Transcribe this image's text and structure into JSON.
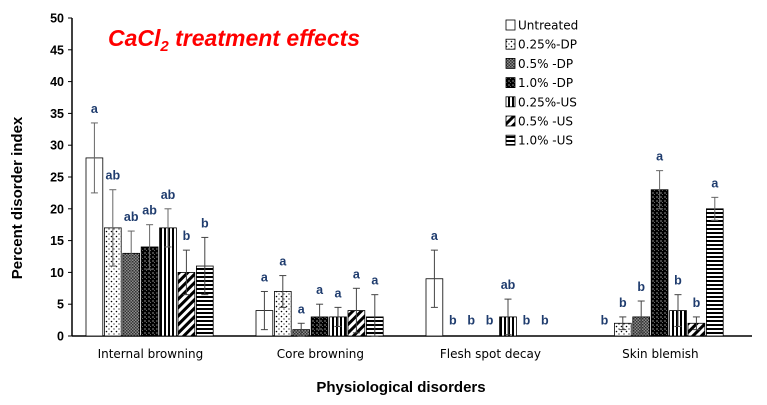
{
  "chart_data": {
    "type": "bar",
    "title": "CaCl",
    "title_subscript": "2",
    "title_rest": " treatment  effects",
    "xlabel": "Physiological disorders",
    "ylabel": "Percent disorder index",
    "ylim": [
      0,
      50
    ],
    "yticks": [
      "0",
      "5",
      "10",
      "15",
      "20",
      "25",
      "30",
      "35",
      "40",
      "45",
      "50"
    ],
    "categories": [
      "Internal browning",
      "Core browning",
      "Flesh spot decay",
      "Skin blemish"
    ],
    "legend_position": "top-right",
    "series": [
      {
        "name": "Untreated",
        "pattern": "white",
        "values": [
          28,
          4,
          9,
          0
        ],
        "errors": [
          5.5,
          3,
          4.5,
          0
        ],
        "letters": [
          "a",
          "a",
          "a",
          "b"
        ]
      },
      {
        "name": "0.25%-DP",
        "pattern": "dots",
        "values": [
          17,
          7,
          0,
          2
        ],
        "errors": [
          6,
          2.5,
          0,
          1
        ],
        "letters": [
          "ab",
          "a",
          "b",
          "b"
        ]
      },
      {
        "name": "0.5%  -DP",
        "pattern": "dense",
        "values": [
          13,
          1,
          0,
          3
        ],
        "errors": [
          3.5,
          1,
          0,
          2.5
        ],
        "letters": [
          "ab",
          "a",
          "b",
          "b"
        ]
      },
      {
        "name": "1.0%  -DP",
        "pattern": "checker",
        "values": [
          14,
          3,
          0,
          23
        ],
        "errors": [
          3.5,
          2,
          0,
          3
        ],
        "letters": [
          "ab",
          "a",
          "b",
          "a"
        ]
      },
      {
        "name": "0.25%-US",
        "pattern": "vlines",
        "values": [
          17,
          3,
          3,
          4
        ],
        "errors": [
          3,
          1.5,
          2.8,
          2.5
        ],
        "letters": [
          "ab",
          "a",
          "ab",
          "b"
        ]
      },
      {
        "name": "0.5%  -US",
        "pattern": "diag",
        "values": [
          10,
          4,
          0,
          2
        ],
        "errors": [
          3.5,
          3.5,
          0,
          1
        ],
        "letters": [
          "b",
          "a",
          "b",
          "b"
        ]
      },
      {
        "name": "1.0%  -US",
        "pattern": "hlines",
        "values": [
          11,
          3,
          0,
          20
        ],
        "errors": [
          4.5,
          3.5,
          0,
          1.8
        ],
        "letters": [
          "b",
          "a",
          "b",
          "a"
        ]
      }
    ]
  }
}
